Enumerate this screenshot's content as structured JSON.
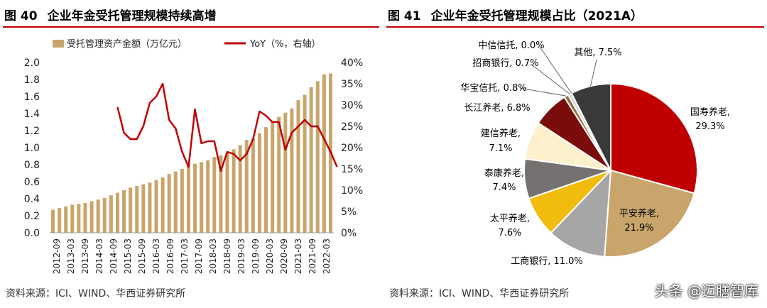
{
  "left": {
    "fig_num": "图 40",
    "title": "企业年金受托管理规模持续高增",
    "source": "资料来源：ICI、WIND、华西证券研究所"
  },
  "right": {
    "fig_num": "图 41",
    "title": "企业年金受托管理规模占比（2021A）",
    "source": "资料来源：ICI、WIND、华西证券研究所"
  },
  "watermark": "头条 @迈膳智库",
  "colors": {
    "bar": "#c9a56b",
    "line": "#c00000",
    "rule": "#c00000"
  },
  "chart_data": [
    {
      "type": "bar",
      "legend": {
        "bar_label": "受托管理资产金额（万亿元）",
        "line_label": "YoY（%，右轴）",
        "placement": "top"
      },
      "x_tick_labels": [
        "2012-09",
        "2013-03",
        "2013-09",
        "2014-03",
        "2014-09",
        "2015-03",
        "2015-09",
        "2016-03",
        "2016-09",
        "2017-03",
        "2017-09",
        "2018-03",
        "2018-09",
        "2019-03",
        "2019-09",
        "2020-03",
        "2020-09",
        "2021-03",
        "2021-09",
        "2022-03"
      ],
      "y_left": {
        "min": 0,
        "max": 2.0,
        "ticks": [
          "0.0",
          "0.2",
          "0.4",
          "0.6",
          "0.8",
          "1.0",
          "1.2",
          "1.4",
          "1.6",
          "1.8",
          "2.0"
        ]
      },
      "y_right": {
        "min": 0,
        "max": 40,
        "ticks": [
          "0%",
          "5%",
          "10%",
          "15%",
          "20%",
          "25%",
          "30%",
          "35%",
          "40%"
        ]
      },
      "bars": [
        0.27,
        0.29,
        0.31,
        0.33,
        0.34,
        0.35,
        0.37,
        0.39,
        0.41,
        0.44,
        0.47,
        0.5,
        0.53,
        0.55,
        0.57,
        0.59,
        0.62,
        0.65,
        0.69,
        0.72,
        0.75,
        0.79,
        0.81,
        0.83,
        0.85,
        0.89,
        0.91,
        0.94,
        0.98,
        1.03,
        1.09,
        1.11,
        1.17,
        1.24,
        1.3,
        1.36,
        1.41,
        1.46,
        1.56,
        1.62,
        1.71,
        1.78,
        1.86,
        1.87
      ],
      "line": {
        "start_index": 10,
        "values": [
          29.5,
          23.5,
          22,
          22,
          25,
          30.5,
          32,
          35,
          26.5,
          24.5,
          19,
          15.5,
          29,
          21,
          21.5,
          21.5,
          14.5,
          19,
          18.5,
          17,
          18.5,
          22,
          28.5,
          27.5,
          26,
          26,
          19.5,
          23.5,
          25,
          26.5,
          25,
          25,
          22,
          19,
          15.5
        ]
      }
    },
    {
      "type": "pie",
      "slices": [
        {
          "label": "国寿养老",
          "value": 29.3,
          "color": "#c00000"
        },
        {
          "label": "平安养老",
          "value": 21.9,
          "color": "#c9a56b"
        },
        {
          "label": "工商银行",
          "value": 11.0,
          "color": "#a6a6a6"
        },
        {
          "label": "太平养老",
          "value": 7.6,
          "color": "#f2bc0f"
        },
        {
          "label": "泰康养老",
          "value": 7.4,
          "color": "#767171"
        },
        {
          "label": "建信养老",
          "value": 7.1,
          "color": "#fdf0cc"
        },
        {
          "label": "长江养老",
          "value": 6.8,
          "color": "#7b0c0c"
        },
        {
          "label": "华宝信托",
          "value": 0.8,
          "color": "#8d6e3f"
        },
        {
          "label": "招商银行",
          "value": 0.7,
          "color": "#d9d9d9"
        },
        {
          "label": "中信信托",
          "value": 0.0,
          "color": "#ffffff"
        },
        {
          "label": "其他",
          "value": 7.5,
          "color": "#3a3a3a"
        }
      ],
      "label_texts": [
        "国寿养老,",
        "29.3%",
        "平安养老,",
        "21.9%",
        "工商银行, 11.0%",
        "太平养老,",
        "7.6%",
        "泰康养老,",
        "7.4%",
        "建信养老,",
        "7.1%",
        "长江养老, 6.8%",
        "华宝信托, 0.8%",
        "招商银行, 0.7%",
        "中信信托, 0.0%",
        "其他, 7.5%"
      ]
    }
  ]
}
